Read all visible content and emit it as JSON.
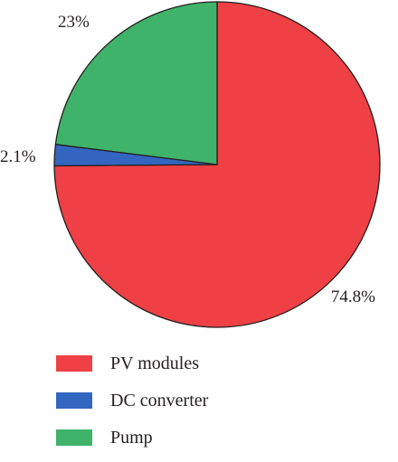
{
  "chart_data": {
    "type": "pie",
    "slices": [
      {
        "name": "PV modules",
        "value": 74.8,
        "label": "74.8%",
        "color": "#ef4045"
      },
      {
        "name": "DC converter",
        "value": 2.1,
        "label": "2.1%",
        "color": "#3366c0"
      },
      {
        "name": "Pump",
        "value": 23,
        "label": "23%",
        "color": "#3fb36a"
      }
    ],
    "start": "12 o'clock",
    "direction": "clockwise",
    "legend": "bottom-left"
  }
}
